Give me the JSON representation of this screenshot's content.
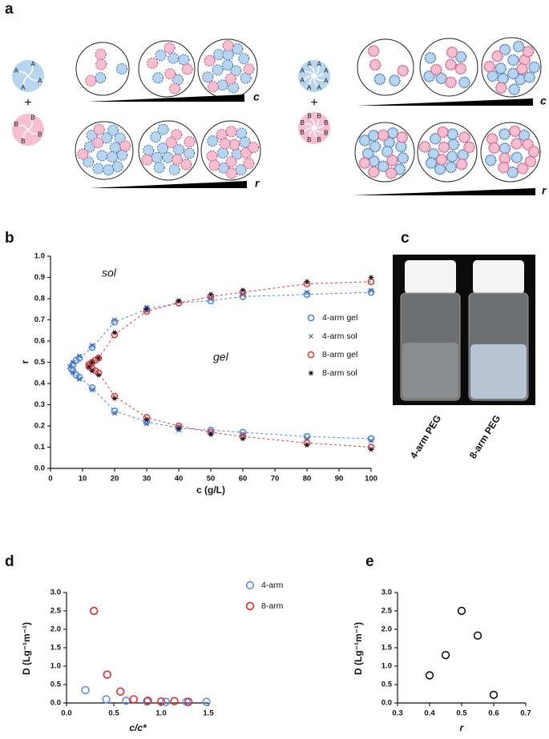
{
  "panels": {
    "a": "a",
    "b": "b",
    "c": "c",
    "d": "d",
    "e": "e"
  },
  "diagram": {
    "arm_a": "A",
    "arm_b": "B",
    "plus": "+",
    "gradient_c": "c",
    "gradient_r": "r"
  },
  "photo": {
    "labels": [
      "4-arm PEG",
      "8-arm PEG"
    ]
  },
  "chart_data": [
    {
      "type": "scatter",
      "xlabel": "c (g/L)",
      "ylabel": "r",
      "annotations": [
        "sol",
        "gel"
      ],
      "xlim": [
        0,
        100
      ],
      "ylim": [
        0,
        1
      ],
      "xticks": [
        0,
        10,
        20,
        30,
        40,
        50,
        60,
        70,
        80,
        90,
        100
      ],
      "yticks": [
        {
          "value": 0,
          "label": "0.0"
        },
        {
          "value": 0.1,
          "label": "0.1"
        },
        {
          "value": 0.2,
          "label": "0.2"
        },
        {
          "value": 0.3,
          "label": "0.3"
        },
        {
          "value": 0.4,
          "label": "0.4"
        },
        {
          "value": 0.5,
          "label": "0.5"
        },
        {
          "value": 0.6,
          "label": "0.6"
        },
        {
          "value": 0.7,
          "label": "0.7"
        },
        {
          "value": 0.8,
          "label": "0.8"
        },
        {
          "value": 0.9,
          "label": "0.9"
        },
        {
          "value": 1,
          "label": "1.0"
        }
      ],
      "legend": "right",
      "series": [
        {
          "name": "4-arm gel",
          "color": "#4a86e8",
          "marker": "circle",
          "dashed_line": true,
          "x": [
            100,
            80,
            60,
            50,
            40,
            30,
            20,
            13,
            9,
            8,
            7,
            6.5,
            7,
            8,
            9,
            13,
            20,
            30,
            40,
            50,
            60,
            80,
            100
          ],
          "y": [
            0.83,
            0.82,
            0.81,
            0.79,
            0.78,
            0.75,
            0.69,
            0.57,
            0.52,
            0.51,
            0.49,
            0.47,
            0.46,
            0.44,
            0.43,
            0.38,
            0.27,
            0.22,
            0.19,
            0.18,
            0.17,
            0.15,
            0.14
          ]
        },
        {
          "name": "4-arm sol",
          "color": "#3a5fa8",
          "marker": "x",
          "x": [
            100,
            80,
            60,
            50,
            40,
            30,
            20,
            13,
            9,
            7,
            6,
            7,
            9,
            13,
            20,
            30,
            40,
            50,
            60,
            80,
            100
          ],
          "y": [
            0.84,
            0.83,
            0.82,
            0.8,
            0.79,
            0.76,
            0.7,
            0.58,
            0.53,
            0.5,
            0.48,
            0.45,
            0.42,
            0.37,
            0.26,
            0.21,
            0.18,
            0.17,
            0.16,
            0.14,
            0.13
          ]
        },
        {
          "name": "8-arm gel",
          "color": "#e03c3c",
          "marker": "circle",
          "dashed_line": true,
          "x": [
            100,
            80,
            60,
            50,
            40,
            30,
            20,
            15,
            14,
            13,
            12,
            12,
            13,
            14,
            15,
            20,
            30,
            40,
            50,
            60,
            80,
            100
          ],
          "y": [
            0.88,
            0.87,
            0.83,
            0.81,
            0.78,
            0.74,
            0.63,
            0.52,
            0.51,
            0.5,
            0.49,
            0.48,
            0.47,
            0.46,
            0.45,
            0.34,
            0.24,
            0.2,
            0.17,
            0.15,
            0.12,
            0.1
          ]
        },
        {
          "name": "8-arm sol",
          "color": "#111111",
          "marker": "star",
          "x": [
            100,
            80,
            60,
            50,
            40,
            30,
            20,
            15,
            13,
            12,
            13,
            15,
            20,
            30,
            40,
            50,
            60,
            80,
            100
          ],
          "y": [
            0.9,
            0.88,
            0.84,
            0.82,
            0.79,
            0.75,
            0.64,
            0.52,
            0.5,
            0.48,
            0.46,
            0.44,
            0.33,
            0.23,
            0.19,
            0.16,
            0.14,
            0.11,
            0.09
          ]
        }
      ]
    },
    {
      "type": "scatter",
      "xlabel": "c/c*",
      "ylabel": "D (Lg⁻¹m⁻¹)",
      "xlim": [
        0,
        1.5
      ],
      "ylim": [
        0,
        3
      ],
      "xticks": [
        {
          "value": 0,
          "label": "0.0"
        },
        0.5,
        {
          "value": 1,
          "label": "1.0"
        },
        1.5
      ],
      "yticks": [
        {
          "value": 0,
          "label": "0.0"
        },
        0.5,
        {
          "value": 1,
          "label": "1.0"
        },
        1.5,
        {
          "value": 2,
          "label": "2.0"
        },
        2.5,
        {
          "value": 3,
          "label": "3.0"
        }
      ],
      "legend": "upper right",
      "series": [
        {
          "name": "4-arm",
          "color": "#5b8fe8",
          "marker": "circle",
          "x": [
            0.2,
            0.42,
            0.63,
            0.85,
            1.05,
            1.27,
            1.48
          ],
          "y": [
            0.35,
            0.1,
            0.06,
            0.04,
            0.03,
            0.03,
            0.03
          ]
        },
        {
          "name": "8-arm",
          "color": "#e02a2a",
          "marker": "circle",
          "x": [
            0.29,
            0.43,
            0.57,
            0.71,
            0.86,
            1.0,
            1.14,
            1.29
          ],
          "y": [
            2.5,
            0.77,
            0.31,
            0.1,
            0.06,
            0.04,
            0.05,
            0.03
          ]
        }
      ]
    },
    {
      "type": "scatter",
      "xlabel": "r",
      "ylabel": "D (Lg⁻¹m⁻¹)",
      "xlim": [
        0.3,
        0.7
      ],
      "ylim": [
        0,
        3
      ],
      "xticks": [
        0.3,
        0.4,
        0.5,
        0.6,
        0.7
      ],
      "yticks": [
        {
          "value": 0,
          "label": "0.0"
        },
        0.5,
        {
          "value": 1,
          "label": "1.0"
        },
        1.5,
        {
          "value": 2,
          "label": "2.0"
        },
        2.5,
        {
          "value": 3,
          "label": "3.0"
        }
      ],
      "series": [
        {
          "color": "#111111",
          "marker": "circle",
          "x": [
            0.4,
            0.45,
            0.5,
            0.55,
            0.6
          ],
          "y": [
            0.75,
            1.3,
            2.5,
            1.83,
            0.22
          ]
        }
      ]
    }
  ]
}
